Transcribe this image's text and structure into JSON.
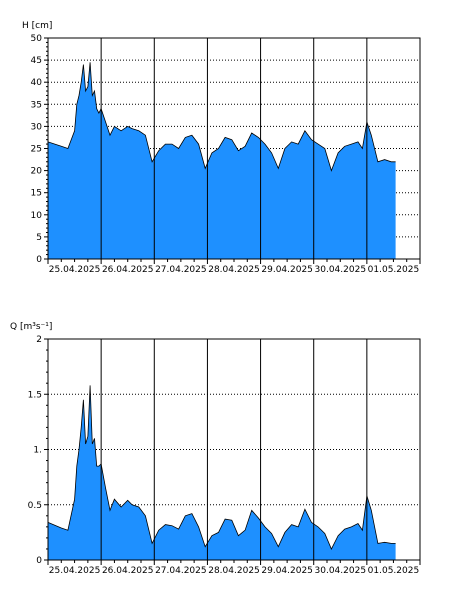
{
  "chart_data": [
    {
      "type": "area",
      "ylabel": "H [cm]",
      "ylim": [
        0,
        50
      ],
      "yticks": [
        0,
        5,
        10,
        15,
        20,
        25,
        30,
        35,
        40,
        45,
        50
      ],
      "ytick_labels": [
        "0",
        "5",
        "10",
        "15",
        "20",
        "25",
        "30",
        "35",
        "40",
        "45",
        "50"
      ],
      "x_start": "2025-04-25T00:00",
      "x_end": "2025-05-02T00:00",
      "xtick_labels": [
        "25.04.2025",
        "26.04.2025",
        "27.04.2025",
        "28.04.2025",
        "29.04.2025",
        "30.04.2025",
        "01.05.2025"
      ],
      "grid": true,
      "fill_color": "#1e90ff",
      "x": [
        "2025-04-25T00:00",
        "2025-04-25T06:00",
        "2025-04-25T09:00",
        "2025-04-25T12:00",
        "2025-04-25T13:00",
        "2025-04-25T14:00",
        "2025-04-25T15:00",
        "2025-04-25T16:00",
        "2025-04-25T17:00",
        "2025-04-25T18:00",
        "2025-04-25T19:00",
        "2025-04-25T20:00",
        "2025-04-25T21:00",
        "2025-04-25T22:00",
        "2025-04-25T23:00",
        "2025-04-26T00:00",
        "2025-04-26T02:00",
        "2025-04-26T04:00",
        "2025-04-26T06:00",
        "2025-04-26T09:00",
        "2025-04-26T12:00",
        "2025-04-26T14:00",
        "2025-04-26T17:00",
        "2025-04-26T20:00",
        "2025-04-26T23:00",
        "2025-04-27T02:00",
        "2025-04-27T05:00",
        "2025-04-27T08:00",
        "2025-04-27T11:00",
        "2025-04-27T14:00",
        "2025-04-27T17:00",
        "2025-04-27T20:00",
        "2025-04-27T23:00",
        "2025-04-28T02:00",
        "2025-04-28T05:00",
        "2025-04-28T08:00",
        "2025-04-28T11:00",
        "2025-04-28T14:00",
        "2025-04-28T17:00",
        "2025-04-28T20:00",
        "2025-04-28T23:00",
        "2025-04-29T02:00",
        "2025-04-29T05:00",
        "2025-04-29T08:00",
        "2025-04-29T11:00",
        "2025-04-29T14:00",
        "2025-04-29T17:00",
        "2025-04-29T20:00",
        "2025-04-29T23:00",
        "2025-04-30T02:00",
        "2025-04-30T05:00",
        "2025-04-30T08:00",
        "2025-04-30T11:00",
        "2025-04-30T14:00",
        "2025-04-30T17:00",
        "2025-04-30T20:00",
        "2025-04-30T22:00",
        "2025-05-01T00:00",
        "2025-05-01T02:00",
        "2025-05-01T05:00",
        "2025-05-01T08:00",
        "2025-05-01T11:00",
        "2025-05-01T13:00"
      ],
      "values": [
        26.5,
        25.5,
        25,
        29,
        35,
        37,
        40,
        44,
        38,
        39,
        44.5,
        37,
        38,
        34,
        33,
        34,
        31,
        28,
        30,
        29,
        30,
        29.5,
        29,
        28,
        22,
        24.5,
        26,
        26,
        25,
        27.5,
        28,
        26,
        20.5,
        24,
        25,
        27.5,
        27,
        24.5,
        25.5,
        28.5,
        27.5,
        26,
        24,
        20.5,
        25,
        26.5,
        26,
        29,
        27,
        26,
        25,
        20,
        24,
        25.5,
        26,
        26.5,
        25,
        31,
        28,
        22,
        22.5,
        22,
        22
      ]
    },
    {
      "type": "area",
      "ylabel": "Q [m³s⁻¹]",
      "ylim": [
        0,
        2
      ],
      "yticks": [
        0,
        0.5,
        1,
        1.5,
        2
      ],
      "ytick_labels": [
        "0",
        "0.5",
        "1.",
        "1.5",
        "2"
      ],
      "x_start": "2025-04-25T00:00",
      "x_end": "2025-05-02T00:00",
      "xtick_labels": [
        "25.04.2025",
        "26.04.2025",
        "27.04.2025",
        "28.04.2025",
        "29.04.2025",
        "30.04.2025",
        "01.05.2025"
      ],
      "grid": true,
      "fill_color": "#1e90ff",
      "x": [
        "2025-04-25T00:00",
        "2025-04-25T06:00",
        "2025-04-25T09:00",
        "2025-04-25T12:00",
        "2025-04-25T13:00",
        "2025-04-25T14:00",
        "2025-04-25T15:00",
        "2025-04-25T16:00",
        "2025-04-25T17:00",
        "2025-04-25T18:00",
        "2025-04-25T19:00",
        "2025-04-25T20:00",
        "2025-04-25T21:00",
        "2025-04-25T22:00",
        "2025-04-25T23:00",
        "2025-04-26T00:00",
        "2025-04-26T02:00",
        "2025-04-26T04:00",
        "2025-04-26T06:00",
        "2025-04-26T09:00",
        "2025-04-26T12:00",
        "2025-04-26T14:00",
        "2025-04-26T17:00",
        "2025-04-26T20:00",
        "2025-04-26T23:00",
        "2025-04-27T02:00",
        "2025-04-27T05:00",
        "2025-04-27T08:00",
        "2025-04-27T11:00",
        "2025-04-27T14:00",
        "2025-04-27T17:00",
        "2025-04-27T20:00",
        "2025-04-27T23:00",
        "2025-04-28T02:00",
        "2025-04-28T05:00",
        "2025-04-28T08:00",
        "2025-04-28T11:00",
        "2025-04-28T14:00",
        "2025-04-28T17:00",
        "2025-04-28T20:00",
        "2025-04-28T23:00",
        "2025-04-29T02:00",
        "2025-04-29T05:00",
        "2025-04-29T08:00",
        "2025-04-29T11:00",
        "2025-04-29T14:00",
        "2025-04-29T17:00",
        "2025-04-29T20:00",
        "2025-04-29T23:00",
        "2025-04-30T02:00",
        "2025-04-30T05:00",
        "2025-04-30T08:00",
        "2025-04-30T11:00",
        "2025-04-30T14:00",
        "2025-04-30T17:00",
        "2025-04-30T20:00",
        "2025-04-30T22:00",
        "2025-05-01T00:00",
        "2025-05-01T02:00",
        "2025-05-01T05:00",
        "2025-05-01T08:00",
        "2025-05-01T11:00",
        "2025-05-01T13:00"
      ],
      "values": [
        0.34,
        0.29,
        0.27,
        0.55,
        0.85,
        1.0,
        1.2,
        1.45,
        1.05,
        1.12,
        1.58,
        1.05,
        1.1,
        0.85,
        0.85,
        0.87,
        0.65,
        0.45,
        0.55,
        0.48,
        0.54,
        0.5,
        0.48,
        0.4,
        0.15,
        0.27,
        0.32,
        0.31,
        0.28,
        0.4,
        0.42,
        0.3,
        0.12,
        0.22,
        0.25,
        0.37,
        0.36,
        0.22,
        0.27,
        0.45,
        0.38,
        0.3,
        0.24,
        0.12,
        0.25,
        0.32,
        0.3,
        0.46,
        0.34,
        0.3,
        0.24,
        0.1,
        0.22,
        0.28,
        0.3,
        0.33,
        0.27,
        0.58,
        0.45,
        0.15,
        0.16,
        0.15,
        0.15
      ]
    }
  ]
}
